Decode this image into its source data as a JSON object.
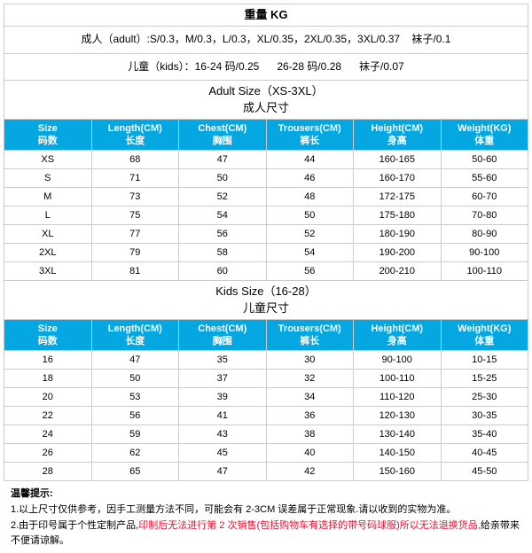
{
  "colors": {
    "header_bg": "#04a7e1",
    "header_fg": "#ffffff",
    "border": "#cccccc",
    "red": "#ee1133"
  },
  "weight_section": {
    "title": "重量 KG",
    "line1": "成人（adult）:S/0.3，M/0.3，L/0.3，XL/0.35，2XL/0.35，3XL/0.37    袜子/0.1",
    "line2": "儿童（kids）：16-24 码/0.25      26-28 码/0.28      袜子/0.07"
  },
  "adult": {
    "title_en": "Adult Size（XS-3XL）",
    "title_cn": "成人尺寸",
    "columns": [
      {
        "en": "Size",
        "cn": "码数"
      },
      {
        "en": "Length(CM)",
        "cn": "长度"
      },
      {
        "en": "Chest(CM)",
        "cn": "胸围"
      },
      {
        "en": "Trousers(CM)",
        "cn": "裤长"
      },
      {
        "en": "Height(CM)",
        "cn": "身高"
      },
      {
        "en": "Weight(KG)",
        "cn": "体重"
      }
    ],
    "rows": [
      [
        "XS",
        "68",
        "47",
        "44",
        "160-165",
        "50-60"
      ],
      [
        "S",
        "71",
        "50",
        "46",
        "160-170",
        "55-60"
      ],
      [
        "M",
        "73",
        "52",
        "48",
        "172-175",
        "60-70"
      ],
      [
        "L",
        "75",
        "54",
        "50",
        "175-180",
        "70-80"
      ],
      [
        "XL",
        "77",
        "56",
        "52",
        "180-190",
        "80-90"
      ],
      [
        "2XL",
        "79",
        "58",
        "54",
        "190-200",
        "90-100"
      ],
      [
        "3XL",
        "81",
        "60",
        "56",
        "200-210",
        "100-110"
      ]
    ]
  },
  "kids": {
    "title_en": "Kids Size（16-28）",
    "title_cn": "儿童尺寸",
    "columns": [
      {
        "en": "Size",
        "cn": "码数"
      },
      {
        "en": "Length(CM)",
        "cn": "长度"
      },
      {
        "en": "Chest(CM)",
        "cn": "胸围"
      },
      {
        "en": "Trousers(CM)",
        "cn": "裤长"
      },
      {
        "en": "Height(CM)",
        "cn": "身高"
      },
      {
        "en": "Weight(KG)",
        "cn": "体重"
      }
    ],
    "rows": [
      [
        "16",
        "47",
        "35",
        "30",
        "90-100",
        "10-15"
      ],
      [
        "18",
        "50",
        "37",
        "32",
        "100-110",
        "15-25"
      ],
      [
        "20",
        "53",
        "39",
        "34",
        "110-120",
        "25-30"
      ],
      [
        "22",
        "56",
        "41",
        "36",
        "120-130",
        "30-35"
      ],
      [
        "24",
        "59",
        "43",
        "38",
        "130-140",
        "35-40"
      ],
      [
        "26",
        "62",
        "45",
        "40",
        "140-150",
        "40-45"
      ],
      [
        "28",
        "65",
        "47",
        "42",
        "150-160",
        "45-50"
      ]
    ]
  },
  "tips": {
    "title": "温馨提示:",
    "line1": "1.以上尺寸仅供参考，因手工测量方法不同，可能会有 2-3CM 误差属于正常现象.请以收到的实物为准。",
    "line2_a": "2.由于印号属于个性定制产品,",
    "line2_red": "印制后无法进行第 2 次销售(包括购物车有选择的带号码球服)所以无法退换货品,",
    "line2_b": "给亲带来不便请谅解。"
  }
}
